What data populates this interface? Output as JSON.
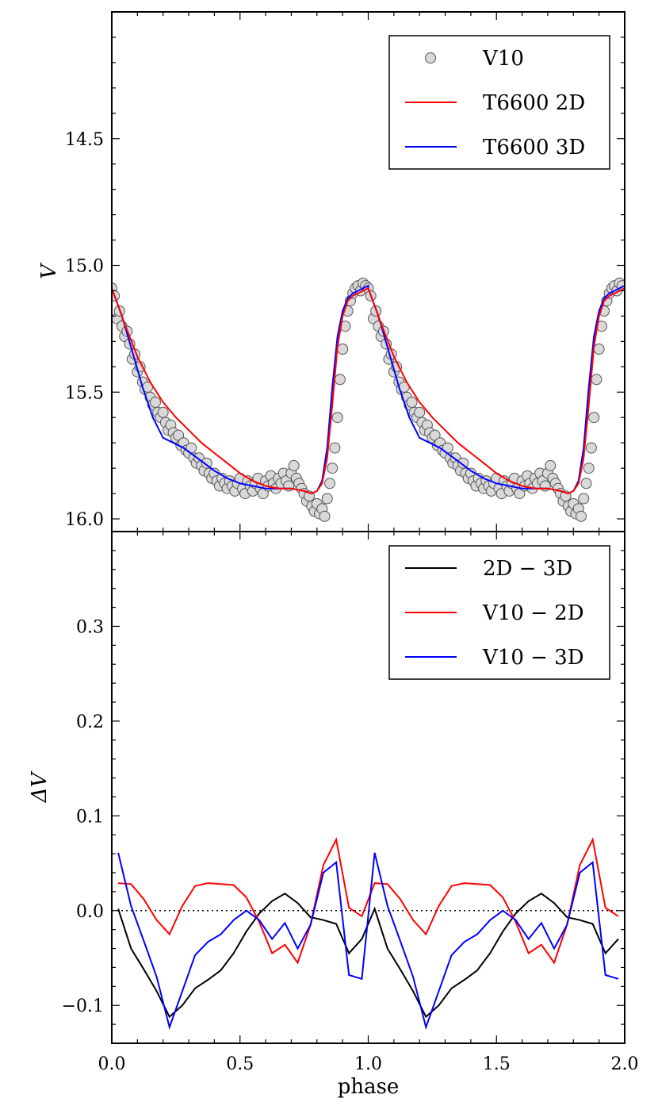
{
  "chart_data": [
    {
      "type": "scatter",
      "panel": "top",
      "ylabel": "V",
      "xlabel": "",
      "xlim": [
        0.0,
        2.0
      ],
      "ylim": [
        16.05,
        14.0
      ],
      "y_inverted": true,
      "yticks": [
        14.5,
        15.0,
        15.5,
        16.0
      ],
      "ytick_labels": [
        "14.5",
        "15.0",
        "15.5",
        "16.0"
      ],
      "legend_position": "top-right",
      "legend": [
        "V10",
        "T6600 2D",
        "T6600 3D"
      ],
      "colors": {
        "V10": "#d9d9d9",
        "T6600 2D": "#ff0000",
        "T6600 3D": "#0000ff"
      },
      "series": [
        {
          "name": "V10",
          "style": "markers",
          "x": [
            0.0,
            0.01,
            0.02,
            0.03,
            0.04,
            0.05,
            0.06,
            0.07,
            0.08,
            0.09,
            0.1,
            0.11,
            0.12,
            0.13,
            0.14,
            0.15,
            0.16,
            0.17,
            0.18,
            0.19,
            0.2,
            0.21,
            0.22,
            0.23,
            0.24,
            0.25,
            0.26,
            0.27,
            0.28,
            0.29,
            0.3,
            0.31,
            0.32,
            0.33,
            0.34,
            0.35,
            0.36,
            0.37,
            0.38,
            0.39,
            0.4,
            0.41,
            0.42,
            0.43,
            0.44,
            0.45,
            0.46,
            0.47,
            0.48,
            0.49,
            0.5,
            0.51,
            0.52,
            0.53,
            0.54,
            0.55,
            0.56,
            0.57,
            0.58,
            0.59,
            0.6,
            0.61,
            0.62,
            0.63,
            0.64,
            0.65,
            0.66,
            0.67,
            0.68,
            0.69,
            0.7,
            0.71,
            0.72,
            0.73,
            0.74,
            0.75,
            0.76,
            0.77,
            0.78,
            0.79,
            0.8,
            0.81,
            0.82,
            0.83,
            0.84,
            0.85,
            0.86,
            0.87,
            0.88,
            0.89,
            0.9,
            0.91,
            0.92,
            0.93,
            0.94,
            0.95,
            0.96,
            0.97,
            0.98,
            0.99
          ],
          "values": [
            15.09,
            15.12,
            15.21,
            15.18,
            15.24,
            15.28,
            15.26,
            15.31,
            15.37,
            15.35,
            15.42,
            15.4,
            15.46,
            15.49,
            15.48,
            15.52,
            15.55,
            15.54,
            15.58,
            15.6,
            15.58,
            15.62,
            15.65,
            15.63,
            15.66,
            15.68,
            15.67,
            15.71,
            15.7,
            15.73,
            15.74,
            15.72,
            15.76,
            15.78,
            15.76,
            15.79,
            15.81,
            15.78,
            15.82,
            15.84,
            15.82,
            15.85,
            15.87,
            15.84,
            15.86,
            15.88,
            15.85,
            15.87,
            15.89,
            15.86,
            15.84,
            15.88,
            15.9,
            15.85,
            15.87,
            15.89,
            15.86,
            15.84,
            15.88,
            15.9,
            15.85,
            15.87,
            15.83,
            15.86,
            15.88,
            15.84,
            15.86,
            15.82,
            15.85,
            15.87,
            15.82,
            15.79,
            15.84,
            15.86,
            15.88,
            15.9,
            15.93,
            15.91,
            15.95,
            15.97,
            15.94,
            15.98,
            15.96,
            15.99,
            15.92,
            15.86,
            15.8,
            15.72,
            15.6,
            15.45,
            15.33,
            15.24,
            15.18,
            15.14,
            15.11,
            15.09,
            15.08,
            15.1,
            15.07,
            15.08
          ]
        },
        {
          "name": "T6600 2D",
          "style": "line",
          "x": [
            0.0,
            0.05,
            0.1,
            0.15,
            0.2,
            0.25,
            0.3,
            0.35,
            0.4,
            0.45,
            0.5,
            0.55,
            0.6,
            0.65,
            0.7,
            0.75,
            0.78,
            0.8,
            0.82,
            0.84,
            0.86,
            0.88,
            0.9,
            0.92,
            0.94,
            0.96,
            0.98,
            1.0
          ],
          "values": [
            15.09,
            15.23,
            15.36,
            15.46,
            15.54,
            15.6,
            15.65,
            15.7,
            15.74,
            15.78,
            15.82,
            15.85,
            15.87,
            15.88,
            15.88,
            15.89,
            15.9,
            15.89,
            15.86,
            15.76,
            15.55,
            15.32,
            15.2,
            15.14,
            15.12,
            15.11,
            15.1,
            15.09
          ]
        },
        {
          "name": "T6600 3D",
          "style": "line",
          "x": [
            0.0,
            0.04,
            0.08,
            0.12,
            0.16,
            0.2,
            0.24,
            0.28,
            0.32,
            0.36,
            0.4,
            0.45,
            0.5,
            0.55,
            0.6,
            0.65,
            0.7,
            0.75,
            0.78,
            0.8,
            0.82,
            0.84,
            0.86,
            0.88,
            0.9,
            0.92,
            0.94,
            0.96,
            0.98,
            1.0
          ],
          "values": [
            15.09,
            15.2,
            15.34,
            15.48,
            15.6,
            15.68,
            15.7,
            15.72,
            15.75,
            15.78,
            15.81,
            15.84,
            15.86,
            15.87,
            15.88,
            15.88,
            15.88,
            15.89,
            15.9,
            15.89,
            15.85,
            15.72,
            15.48,
            15.28,
            15.18,
            15.13,
            15.11,
            15.1,
            15.09,
            15.08
          ]
        }
      ]
    },
    {
      "type": "line",
      "panel": "bottom",
      "ylabel": "ΔV",
      "xlabel": "phase",
      "xlim": [
        0.0,
        2.0
      ],
      "ylim": [
        -0.14,
        0.4
      ],
      "xticks": [
        0.0,
        0.5,
        1.0,
        1.5,
        2.0
      ],
      "xtick_labels": [
        "0.0",
        "0.5",
        "1.0",
        "1.5",
        "2.0"
      ],
      "yticks": [
        -0.1,
        0.0,
        0.1,
        0.2,
        0.3
      ],
      "ytick_labels": [
        "−0.1",
        "0.0",
        "0.1",
        "0.2",
        "0.3"
      ],
      "reference_line": {
        "y": 0.0,
        "style": "dotted"
      },
      "legend_position": "top-right",
      "legend": [
        "2D − 3D",
        "V10 − 2D",
        "V10 − 3D"
      ],
      "colors": {
        "2D − 3D": "#000000",
        "V10 − 2D": "#ff0000",
        "V10 − 3D": "#0000ff"
      },
      "series": [
        {
          "name": "2D − 3D",
          "x": [
            0.025,
            0.075,
            0.125,
            0.175,
            0.225,
            0.275,
            0.325,
            0.375,
            0.425,
            0.475,
            0.525,
            0.575,
            0.625,
            0.675,
            0.725,
            0.775,
            0.825,
            0.875,
            0.925,
            0.975
          ],
          "values": [
            0.002,
            -0.04,
            -0.062,
            -0.085,
            -0.112,
            -0.1,
            -0.082,
            -0.073,
            -0.063,
            -0.045,
            -0.022,
            -0.003,
            0.01,
            0.018,
            0.008,
            -0.007,
            -0.01,
            -0.014,
            -0.045,
            -0.03
          ]
        },
        {
          "name": "V10 − 2D",
          "x": [
            0.025,
            0.075,
            0.125,
            0.175,
            0.225,
            0.275,
            0.325,
            0.375,
            0.425,
            0.475,
            0.525,
            0.575,
            0.625,
            0.675,
            0.725,
            0.775,
            0.825,
            0.875,
            0.925,
            0.975
          ],
          "values": [
            0.029,
            0.028,
            0.012,
            -0.01,
            -0.025,
            0.005,
            0.026,
            0.029,
            0.028,
            0.027,
            0.014,
            -0.012,
            -0.045,
            -0.036,
            -0.055,
            -0.015,
            0.048,
            0.075,
            0.003,
            -0.006
          ]
        },
        {
          "name": "V10 − 3D",
          "x": [
            0.025,
            0.075,
            0.125,
            0.175,
            0.225,
            0.275,
            0.325,
            0.375,
            0.425,
            0.475,
            0.525,
            0.575,
            0.625,
            0.675,
            0.725,
            0.775,
            0.825,
            0.875,
            0.925,
            0.975
          ],
          "values": [
            0.061,
            0.005,
            -0.032,
            -0.07,
            -0.123,
            -0.085,
            -0.047,
            -0.033,
            -0.025,
            -0.01,
            0.0,
            -0.01,
            -0.03,
            -0.013,
            -0.04,
            -0.015,
            0.04,
            0.051,
            -0.068,
            -0.072
          ]
        }
      ]
    }
  ]
}
